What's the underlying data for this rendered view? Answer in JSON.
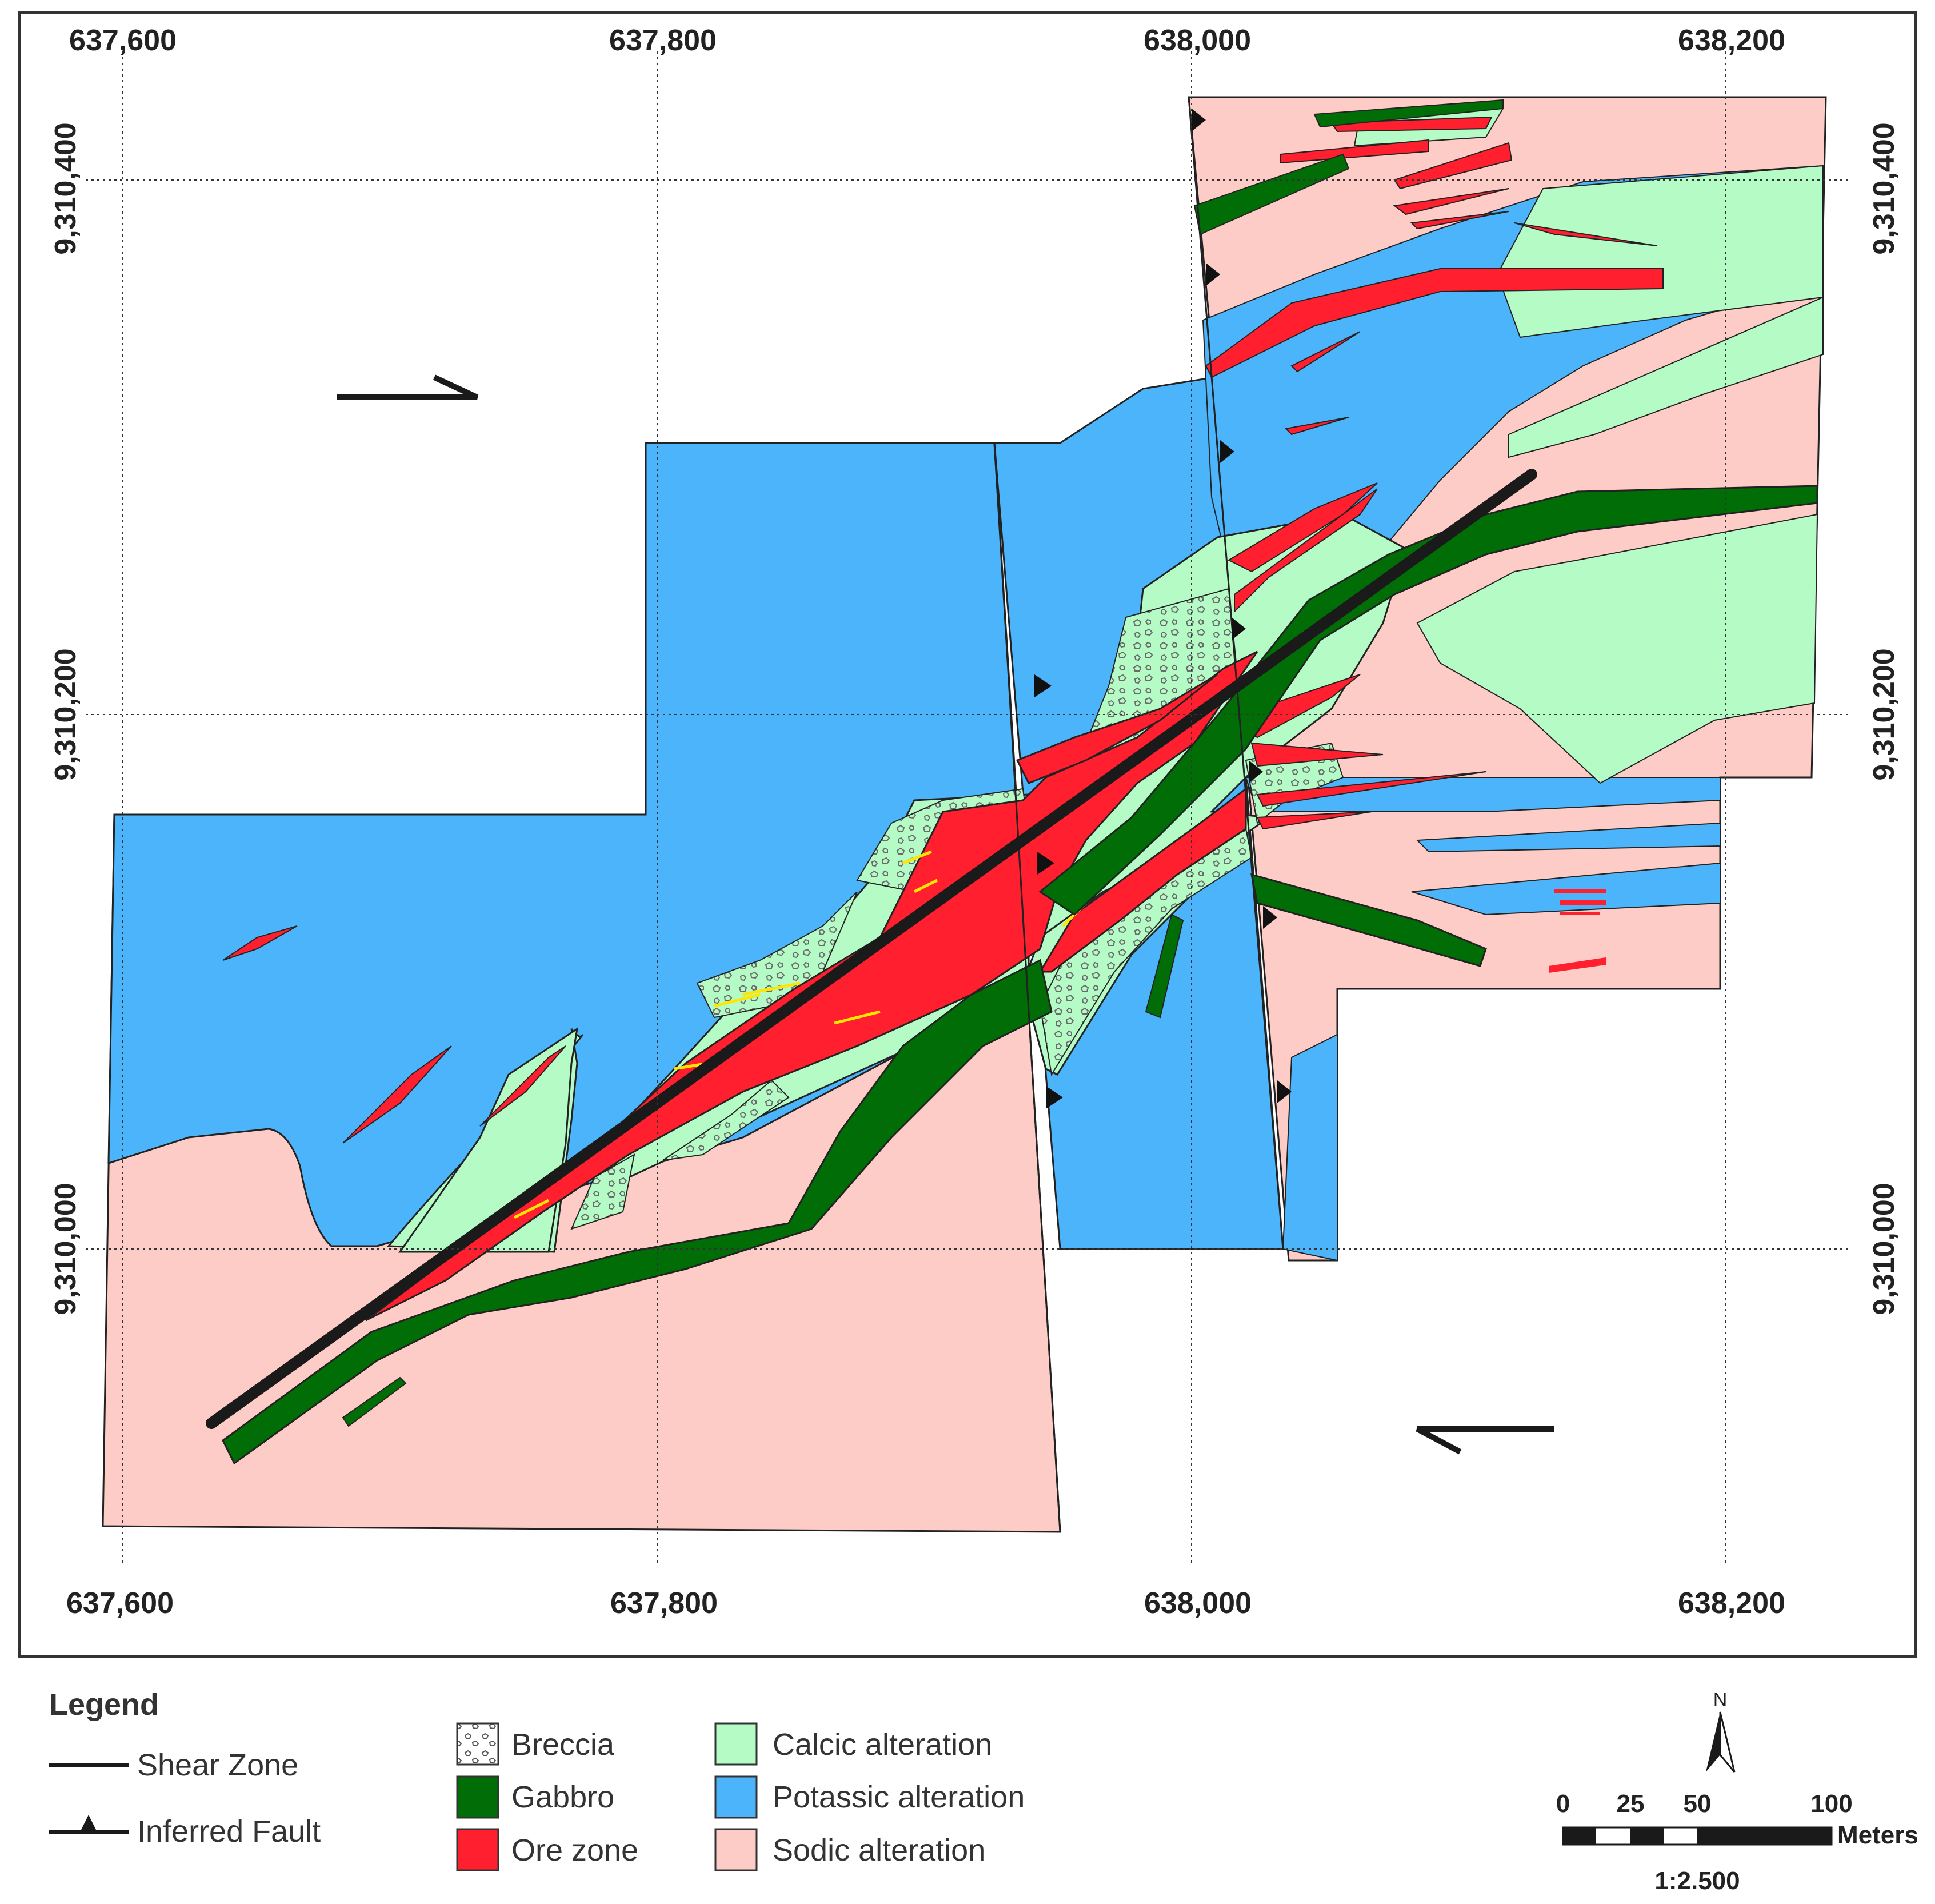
{
  "grid": {
    "easting_labels": [
      "637,600",
      "637,800",
      "638,000",
      "638,200"
    ],
    "northing_labels": [
      "9,310,400",
      "9,310,200",
      "9,310,000"
    ]
  },
  "legend": {
    "title": "Legend",
    "lines": [
      {
        "label": "Shear Zone",
        "symbol": "line"
      },
      {
        "label": "Inferred Fault",
        "symbol": "fault-line"
      }
    ],
    "units": [
      {
        "label": "Breccia",
        "color": "#ffffff",
        "pattern": "breccia"
      },
      {
        "label": "Gabbro",
        "color": "#006d06"
      },
      {
        "label": "Ore zone",
        "color": "#ff1f2f"
      },
      {
        "label": "Calcic alteration",
        "color": "#b4fbc6"
      },
      {
        "label": "Potassic alteration",
        "color": "#4cb4fb"
      },
      {
        "label": "Sodic alteration",
        "color": "#fdccc6"
      }
    ]
  },
  "scale_bar": {
    "ticks": [
      "0",
      "25",
      "50",
      "100"
    ],
    "unit": "Meters",
    "ratio": "1:2.500"
  },
  "north_arrow": {
    "label": "N"
  },
  "colors": {
    "sodic": "#fdccc6",
    "potassic": "#4cb4fb",
    "calcic": "#b4fbc6",
    "gabbro": "#006d06",
    "ore": "#ff1f2f",
    "vein": "#ffe600",
    "shear": "#1a1a1a"
  }
}
